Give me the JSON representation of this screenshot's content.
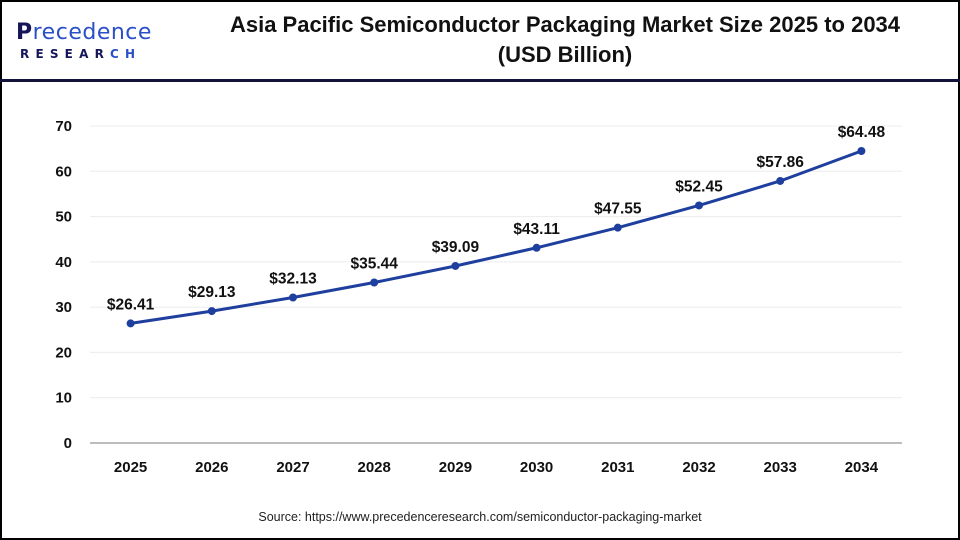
{
  "header": {
    "logo": {
      "top": "Precedence",
      "bottom": "RESEARCH"
    },
    "title_line1": "Asia Pacific Semiconductor Packaging Market Size 2025 to 2034",
    "title_line2": "(USD Billion)"
  },
  "footer": {
    "source": "Source: https://www.precedenceresearch.com/semiconductor-packaging-market"
  },
  "colors": {
    "line": "#1f3f9e",
    "marker": "#1f3f9e",
    "grid": "#ececec",
    "axis": "#bdbdbd",
    "header_separator": "#12123a",
    "logo_dark": "#15155a",
    "logo_accent": "#2b4fc7"
  },
  "chart_data": {
    "type": "line",
    "title": "Asia Pacific Semiconductor Packaging Market Size 2025 to 2034 (USD Billion)",
    "xlabel": "",
    "ylabel": "",
    "categories": [
      "2025",
      "2026",
      "2027",
      "2028",
      "2029",
      "2030",
      "2031",
      "2032",
      "2033",
      "2034"
    ],
    "series": [
      {
        "name": "Market Size (USD Billion)",
        "values": [
          26.41,
          29.13,
          32.13,
          35.44,
          39.09,
          43.11,
          47.55,
          52.45,
          57.86,
          64.48
        ],
        "labels": [
          "$26.41",
          "$29.13",
          "$32.13",
          "$35.44",
          "$39.09",
          "$43.11",
          "$47.55",
          "$52.45",
          "$57.86",
          "$64.48"
        ]
      }
    ],
    "yticks": [
      0,
      10,
      20,
      30,
      40,
      50,
      60,
      70
    ],
    "ylim": [
      0,
      70
    ],
    "grid": true,
    "legend": null,
    "markers": true
  }
}
